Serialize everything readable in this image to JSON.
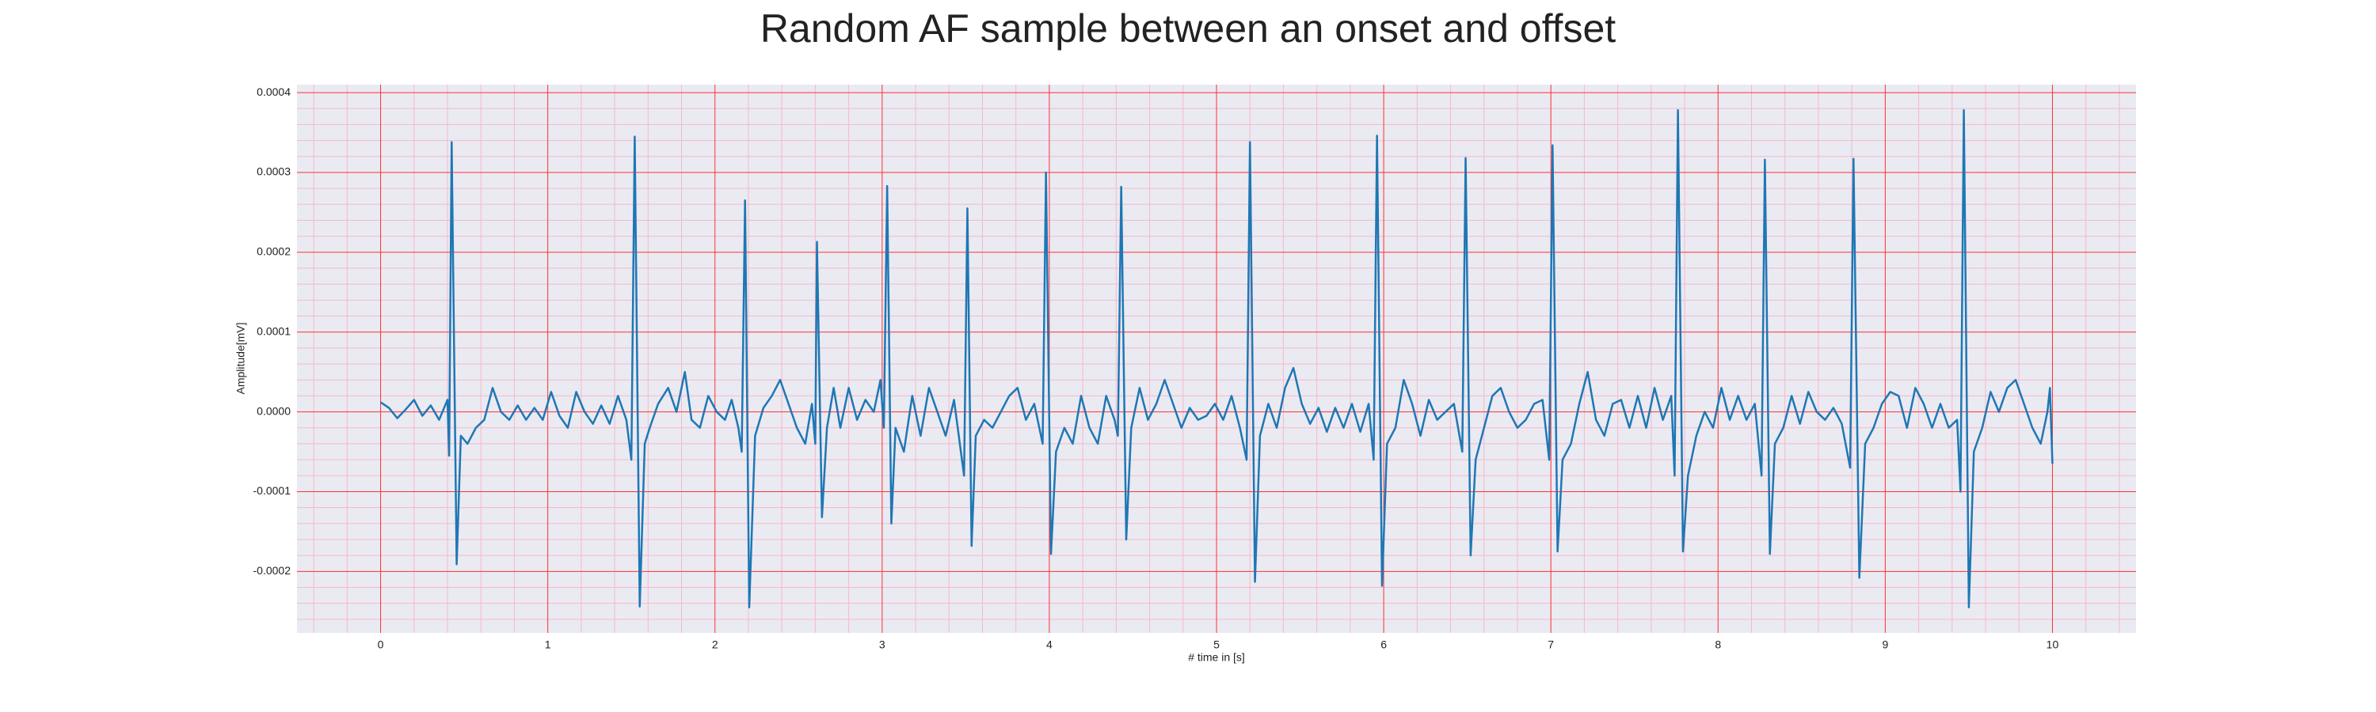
{
  "chart_data": {
    "type": "line",
    "title": "Random AF sample between an onset and offset",
    "xlabel": "# time in [s]",
    "ylabel": "Amplitude[mV]",
    "color": "#1f77b4",
    "grid": true,
    "grid_color": "#ff3030",
    "minor_grid": true,
    "minor_grid_color": "#f7b8c8",
    "xlim": [
      -0.5,
      10.5
    ],
    "xticks": [
      0,
      1,
      2,
      3,
      4,
      5,
      6,
      7,
      8,
      9,
      10
    ],
    "ylim": [
      -0.000277,
      0.00041
    ],
    "yticks": [
      -0.0002,
      -0.0001,
      {
        "value": 0,
        "label": "0.0000"
      },
      0.0001,
      0.0002,
      0.0003,
      0.0004
    ],
    "x": [
      0,
      0.05,
      0.1,
      0.15,
      0.2,
      0.25,
      0.3,
      0.35,
      0.4,
      0.41,
      0.425,
      0.455,
      0.48,
      0.52,
      0.57,
      0.62,
      0.67,
      0.72,
      0.77,
      0.82,
      0.87,
      0.92,
      0.97,
      1.02,
      1.07,
      1.12,
      1.17,
      1.22,
      1.27,
      1.32,
      1.37,
      1.42,
      1.47,
      1.5,
      1.52,
      1.55,
      1.58,
      1.61,
      1.66,
      1.72,
      1.77,
      1.82,
      1.86,
      1.91,
      1.96,
      2.01,
      2.06,
      2.1,
      2.14,
      2.16,
      2.18,
      2.205,
      2.24,
      2.29,
      2.34,
      2.39,
      2.44,
      2.49,
      2.54,
      2.58,
      2.6,
      2.61,
      2.64,
      2.67,
      2.71,
      2.75,
      2.8,
      2.85,
      2.9,
      2.95,
      2.99,
      3.01,
      3.03,
      3.055,
      3.08,
      3.13,
      3.18,
      3.23,
      3.28,
      3.33,
      3.38,
      3.43,
      3.49,
      3.51,
      3.535,
      3.56,
      3.61,
      3.66,
      3.71,
      3.76,
      3.81,
      3.86,
      3.91,
      3.96,
      3.98,
      4.01,
      4.04,
      4.09,
      4.14,
      4.19,
      4.24,
      4.29,
      4.34,
      4.39,
      4.41,
      4.43,
      4.46,
      4.49,
      4.54,
      4.59,
      4.64,
      4.69,
      4.74,
      4.79,
      4.84,
      4.89,
      4.94,
      4.99,
      5.04,
      5.09,
      5.14,
      5.18,
      5.2,
      5.23,
      5.26,
      5.31,
      5.36,
      5.41,
      5.46,
      5.51,
      5.56,
      5.61,
      5.66,
      5.71,
      5.76,
      5.81,
      5.86,
      5.91,
      5.94,
      5.96,
      5.99,
      6.02,
      6.07,
      6.12,
      6.17,
      6.22,
      6.27,
      6.32,
      6.37,
      6.42,
      6.47,
      6.49,
      6.52,
      6.55,
      6.6,
      6.65,
      6.7,
      6.75,
      6.8,
      6.85,
      6.9,
      6.95,
      6.99,
      7.01,
      7.04,
      7.07,
      7.12,
      7.17,
      7.22,
      7.27,
      7.32,
      7.37,
      7.42,
      7.47,
      7.52,
      7.57,
      7.62,
      7.67,
      7.72,
      7.74,
      7.76,
      7.79,
      7.82,
      7.87,
      7.92,
      7.97,
      8.02,
      8.07,
      8.12,
      8.17,
      8.22,
      8.26,
      8.28,
      8.31,
      8.34,
      8.39,
      8.44,
      8.49,
      8.54,
      8.59,
      8.64,
      8.69,
      8.74,
      8.79,
      8.81,
      8.845,
      8.88,
      8.93,
      8.98,
      9.03,
      9.08,
      9.13,
      9.18,
      9.23,
      9.28,
      9.33,
      9.38,
      9.43,
      9.45,
      9.47,
      9.5,
      9.53,
      9.58,
      9.63,
      9.68,
      9.73,
      9.78,
      9.83,
      9.88,
      9.93,
      9.97,
      9.985,
      10
    ],
    "values": [
      1.2e-05,
      5e-06,
      -8e-06,
      3e-06,
      1.5e-05,
      -5e-06,
      8e-06,
      -1e-05,
      1.5e-05,
      -5.5e-05,
      0.000338,
      -0.000191,
      -3e-05,
      -4e-05,
      -2e-05,
      -1e-05,
      3e-05,
      0,
      -1e-05,
      8e-06,
      -1e-05,
      5e-06,
      -1e-05,
      2.5e-05,
      -5e-06,
      -2e-05,
      2.5e-05,
      0,
      -1.5e-05,
      8e-06,
      -1.5e-05,
      2e-05,
      -1e-05,
      -6e-05,
      0.000345,
      -0.000244,
      -4e-05,
      -2e-05,
      1e-05,
      3e-05,
      0,
      5e-05,
      -1e-05,
      -2e-05,
      2e-05,
      0,
      -1e-05,
      1.5e-05,
      -2e-05,
      -5e-05,
      0.000265,
      -0.000245,
      -3e-05,
      5e-06,
      2e-05,
      4e-05,
      1e-05,
      -2e-05,
      -4e-05,
      1e-05,
      -4e-05,
      0.000213,
      -0.000132,
      -2e-05,
      3e-05,
      -2e-05,
      3e-05,
      -1e-05,
      1.5e-05,
      0,
      4e-05,
      -2e-05,
      0.000283,
      -0.00014,
      -2e-05,
      -5e-05,
      2e-05,
      -3e-05,
      3e-05,
      0,
      -3e-05,
      1.5e-05,
      -8e-05,
      0.000255,
      -0.000168,
      -3e-05,
      -1e-05,
      -2e-05,
      0,
      2e-05,
      3e-05,
      -1e-05,
      1e-05,
      -4e-05,
      0.0003,
      -0.000178,
      -5e-05,
      -2e-05,
      -4e-05,
      2e-05,
      -2e-05,
      -4e-05,
      2e-05,
      -1e-05,
      -3e-05,
      0.000282,
      -0.00016,
      -2e-05,
      3e-05,
      -1e-05,
      1e-05,
      4e-05,
      1e-05,
      -2e-05,
      5e-06,
      -1e-05,
      -5e-06,
      1e-05,
      -1e-05,
      2e-05,
      -2e-05,
      -6e-05,
      0.000338,
      -0.000213,
      -3e-05,
      1e-05,
      -2e-05,
      3e-05,
      5.5e-05,
      1e-05,
      -1.5e-05,
      5e-06,
      -2.5e-05,
      5e-06,
      -2e-05,
      1e-05,
      -2.5e-05,
      1e-05,
      -6e-05,
      0.000346,
      -0.000218,
      -4e-05,
      -2e-05,
      4e-05,
      1e-05,
      -3e-05,
      1.5e-05,
      -1e-05,
      0,
      1e-05,
      -5e-05,
      0.000318,
      -0.00018,
      -6e-05,
      -2e-05,
      2e-05,
      3e-05,
      0,
      -2e-05,
      -1e-05,
      1e-05,
      1.5e-05,
      -6e-05,
      0.000334,
      -0.000175,
      -6e-05,
      -4e-05,
      1e-05,
      5e-05,
      -1e-05,
      -3e-05,
      1e-05,
      1.5e-05,
      -2e-05,
      2e-05,
      -2e-05,
      3e-05,
      -1e-05,
      2e-05,
      -8e-05,
      0.000378,
      -0.000175,
      -8e-05,
      -3e-05,
      0,
      -2e-05,
      3e-05,
      -1e-05,
      2e-05,
      -1e-05,
      1e-05,
      -8e-05,
      0.000316,
      -0.000178,
      -4e-05,
      -2e-05,
      2e-05,
      -1.5e-05,
      2.5e-05,
      0,
      -1e-05,
      5e-06,
      -1.5e-05,
      -7e-05,
      0.000317,
      -0.000208,
      -4e-05,
      -2e-05,
      1e-05,
      2.5e-05,
      2e-05,
      -2e-05,
      3e-05,
      1e-05,
      -2e-05,
      1e-05,
      -2e-05,
      -1e-05,
      -0.0001,
      0.000378,
      -0.000245,
      -5e-05,
      -2e-05,
      2.5e-05,
      0,
      3e-05,
      4e-05,
      1e-05,
      -2e-05,
      -4e-05,
      0,
      3e-05,
      -6.5e-05
    ]
  }
}
